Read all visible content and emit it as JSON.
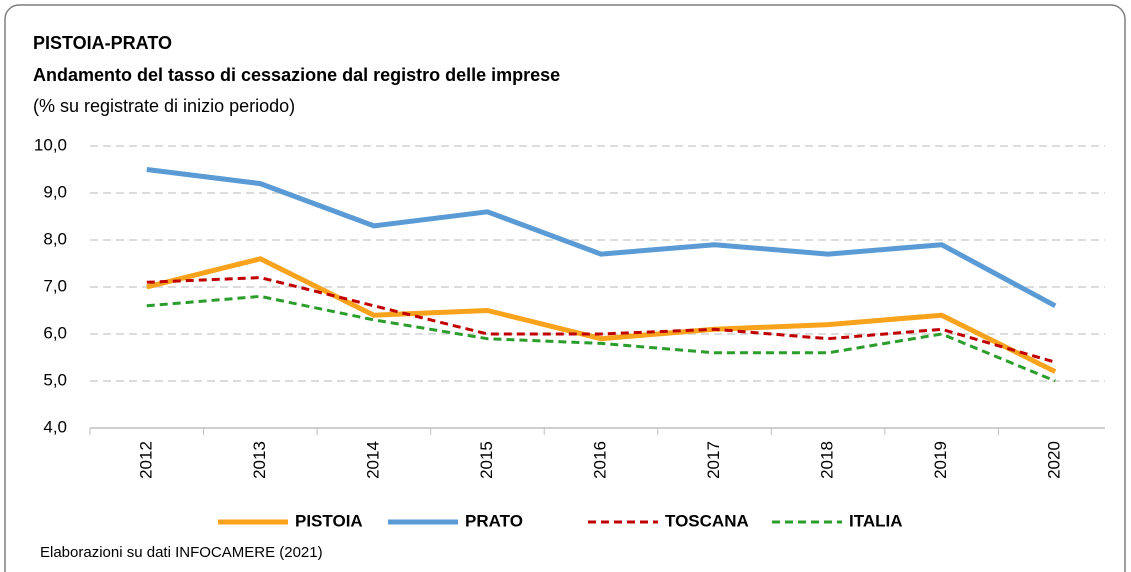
{
  "chart_data": {
    "type": "line",
    "title": "PISTOIA-PRATO",
    "subtitle": "Andamento del tasso  di cessazione dal registro delle imprese",
    "ylabel": "(% su registrate di inizio periodo)",
    "source": "Elaborazioni su dati INFOCAMERE (2021)",
    "categories": [
      "2012",
      "2013",
      "2014",
      "2015",
      "2016",
      "2017",
      "2018",
      "2019",
      "2020"
    ],
    "series": [
      {
        "name": "PISTOIA",
        "color": "#f8a31b",
        "dashed": false,
        "values": [
          7.0,
          7.6,
          6.4,
          6.5,
          5.9,
          6.1,
          6.2,
          6.4,
          5.2
        ]
      },
      {
        "name": "PRATO",
        "color": "#5b9bd5",
        "dashed": false,
        "values": [
          9.5,
          9.2,
          8.3,
          8.6,
          7.7,
          7.9,
          7.7,
          7.9,
          6.6
        ]
      },
      {
        "name": "TOSCANA",
        "color": "#c00000",
        "dashed": true,
        "values": [
          7.1,
          7.2,
          6.6,
          6.0,
          6.0,
          6.1,
          5.9,
          6.1,
          5.4
        ]
      },
      {
        "name": "ITALIA",
        "color": "#2a9d2a",
        "dashed": true,
        "values": [
          6.6,
          6.8,
          6.3,
          5.9,
          5.8,
          5.6,
          5.6,
          6.0,
          5.0
        ]
      }
    ],
    "ylim": [
      4,
      10
    ],
    "yticks": [
      {
        "value": 4,
        "label": "4,0"
      },
      {
        "value": 5,
        "label": "5,0"
      },
      {
        "value": 6,
        "label": "6,0"
      },
      {
        "value": 7,
        "label": "7,0"
      },
      {
        "value": 8,
        "label": "8,0"
      },
      {
        "value": 9,
        "label": "9,0"
      },
      {
        "value": 10,
        "label": "10,0"
      }
    ],
    "grid": true,
    "legend": "bottom"
  }
}
